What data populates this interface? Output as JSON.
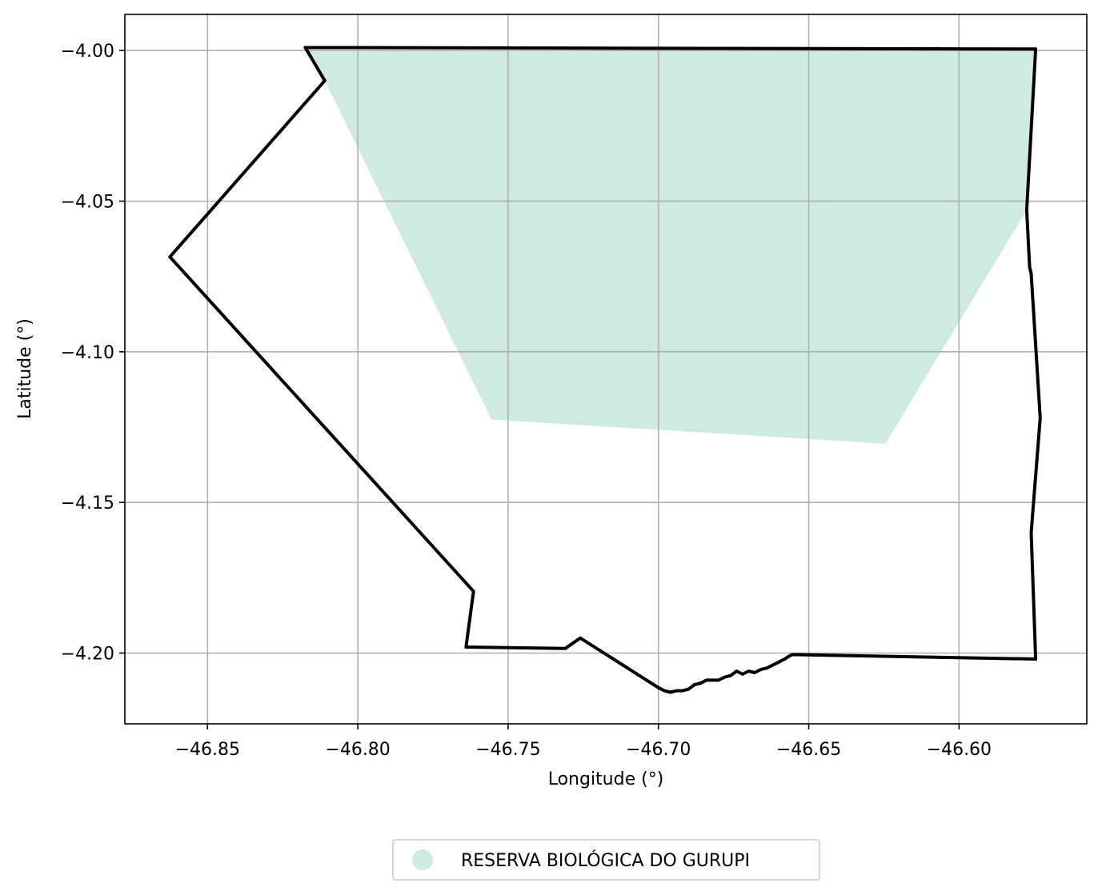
{
  "chart_data": {
    "type": "map",
    "xlabel": "Longitude (°)",
    "ylabel": "Latitude (°)",
    "xlim": [
      -46.8775,
      -46.5575
    ],
    "ylim": [
      -4.2235,
      -3.988
    ],
    "grid": true,
    "x_ticks": [
      {
        "value": -46.85,
        "label": "−46.85"
      },
      {
        "value": -46.8,
        "label": "−46.80"
      },
      {
        "value": -46.75,
        "label": "−46.75"
      },
      {
        "value": -46.7,
        "label": "−46.70"
      },
      {
        "value": -46.65,
        "label": "−46.65"
      },
      {
        "value": -46.6,
        "label": "−46.60"
      }
    ],
    "y_ticks": [
      {
        "value": -4.0,
        "label": "−4.00"
      },
      {
        "value": -4.05,
        "label": "−4.05"
      },
      {
        "value": -4.1,
        "label": "−4.10"
      },
      {
        "value": -4.15,
        "label": "−4.15"
      },
      {
        "value": -4.2,
        "label": "−4.20"
      }
    ],
    "legend": {
      "placement": "bottom-center",
      "entries": [
        {
          "label": "RESERVA BIOLÓGICA DO GURUPI",
          "color": "#cfebdf"
        }
      ]
    },
    "reserve_polygon": {
      "name": "RESERVA BIOLÓGICA DO GURUPI",
      "color": "#cfebdf",
      "points": [
        [
          -46.8165,
          -4.0
        ],
        [
          -46.5745,
          -4.0
        ],
        [
          -46.5775,
          -4.053
        ],
        [
          -46.6245,
          -4.1305
        ],
        [
          -46.7555,
          -4.1225
        ],
        [
          -46.811,
          -4.01
        ]
      ]
    },
    "boundary": {
      "color": "#000000",
      "points": [
        [
          -46.8175,
          -3.999
        ],
        [
          -46.5745,
          -3.9995
        ],
        [
          -46.5775,
          -4.053
        ],
        [
          -46.5765,
          -4.072
        ],
        [
          -46.576,
          -4.074
        ],
        [
          -46.573,
          -4.122
        ],
        [
          -46.576,
          -4.16
        ],
        [
          -46.5745,
          -4.202
        ],
        [
          -46.6555,
          -4.2005
        ],
        [
          -46.6565,
          -4.201
        ],
        [
          -46.658,
          -4.202
        ],
        [
          -46.66,
          -4.203
        ],
        [
          -46.662,
          -4.204
        ],
        [
          -46.664,
          -4.205
        ],
        [
          -46.666,
          -4.2055
        ],
        [
          -46.668,
          -4.2065
        ],
        [
          -46.67,
          -4.206
        ],
        [
          -46.672,
          -4.207
        ],
        [
          -46.674,
          -4.206
        ],
        [
          -46.676,
          -4.2075
        ],
        [
          -46.678,
          -4.208
        ],
        [
          -46.68,
          -4.209
        ],
        [
          -46.682,
          -4.209
        ],
        [
          -46.684,
          -4.209
        ],
        [
          -46.686,
          -4.21
        ],
        [
          -46.688,
          -4.2105
        ],
        [
          -46.69,
          -4.212
        ],
        [
          -46.692,
          -4.2125
        ],
        [
          -46.694,
          -4.2125
        ],
        [
          -46.696,
          -4.213
        ],
        [
          -46.698,
          -4.2125
        ],
        [
          -46.7,
          -4.2115
        ],
        [
          -46.726,
          -4.195
        ],
        [
          -46.731,
          -4.1985
        ],
        [
          -46.764,
          -4.198
        ],
        [
          -46.7615,
          -4.1795
        ],
        [
          -46.8625,
          -4.0685
        ],
        [
          -46.811,
          -4.01
        ],
        [
          -46.8175,
          -3.999
        ]
      ]
    }
  }
}
